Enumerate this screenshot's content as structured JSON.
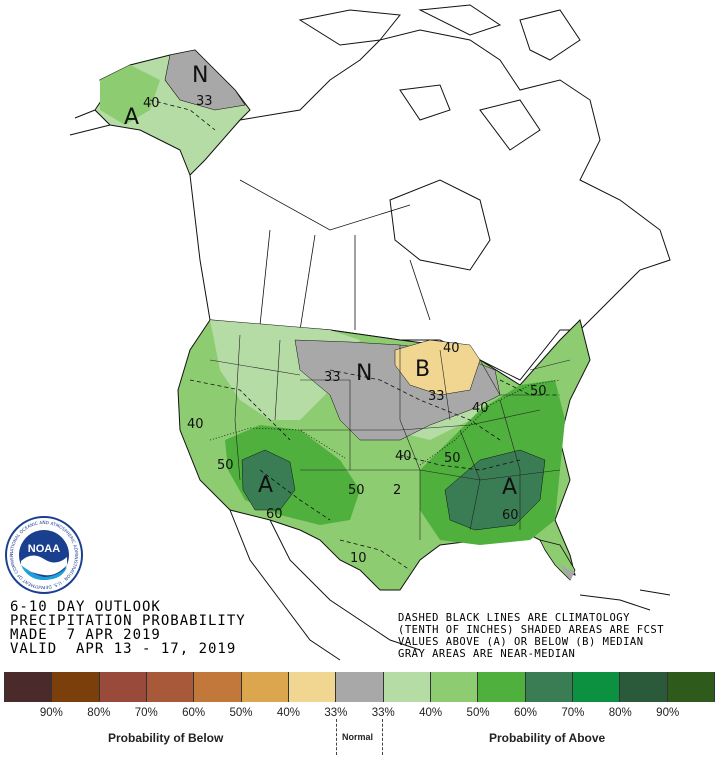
{
  "title_block": {
    "line1": "6-10 DAY OUTLOOK",
    "line2": "PRECIPITATION PROBABILITY",
    "line3": "MADE  7 APR 2019",
    "line4": "VALID  APR 13 - 17, 2019"
  },
  "notes": {
    "line1": "DASHED BLACK LINES ARE CLIMATOLOGY",
    "line2": "(TENTH OF INCHES) SHADED AREAS ARE FCST",
    "line3": "VALUES ABOVE (A) OR BELOW (B) MEDIAN",
    "line4": "GRAY AREAS ARE NEAR-MEDIAN"
  },
  "map_labels": {
    "ak_n": "N",
    "ak_33": "33",
    "ak_40": "40",
    "ak_a": "A",
    "mw_33": "33",
    "mw_n": "N",
    "mw_b": "B",
    "mw_33b": "33",
    "mw_40": "40",
    "w_40": "40",
    "sw_50": "50",
    "sw_a": "A",
    "sw_60": "60",
    "c_40": "40",
    "c_50": "50",
    "s_50": "50",
    "s_2": "2",
    "e_50": "50",
    "e_40": "40",
    "se_a": "A",
    "se_60": "60",
    "tx_10": "10"
  },
  "legend": {
    "swatch_colors": [
      "#4a2a2a",
      "#7a3f0a",
      "#9a4a3a",
      "#a8593a",
      "#c3783b",
      "#dca64e",
      "#f1d692",
      "#a8a8a8",
      "#b5dca4",
      "#8ecc72",
      "#4fb03d",
      "#3a7d55",
      "#0c9140",
      "#2b5a3a",
      "#2e5a1c"
    ],
    "ticks": [
      "90%",
      "80%",
      "70%",
      "60%",
      "50%",
      "40%",
      "33%",
      "33%",
      "40%",
      "50%",
      "60%",
      "70%",
      "80%",
      "90%"
    ],
    "below_caption": "Probability of Below",
    "normal_caption": "Normal",
    "above_caption": "Probability of Above"
  },
  "logo_text": "NOAA",
  "logo_ring_text": "NATIONAL OCEANIC AND ATMOSPHERIC ADMINISTRATION · U.S. DEPARTMENT OF COMMERCE"
}
